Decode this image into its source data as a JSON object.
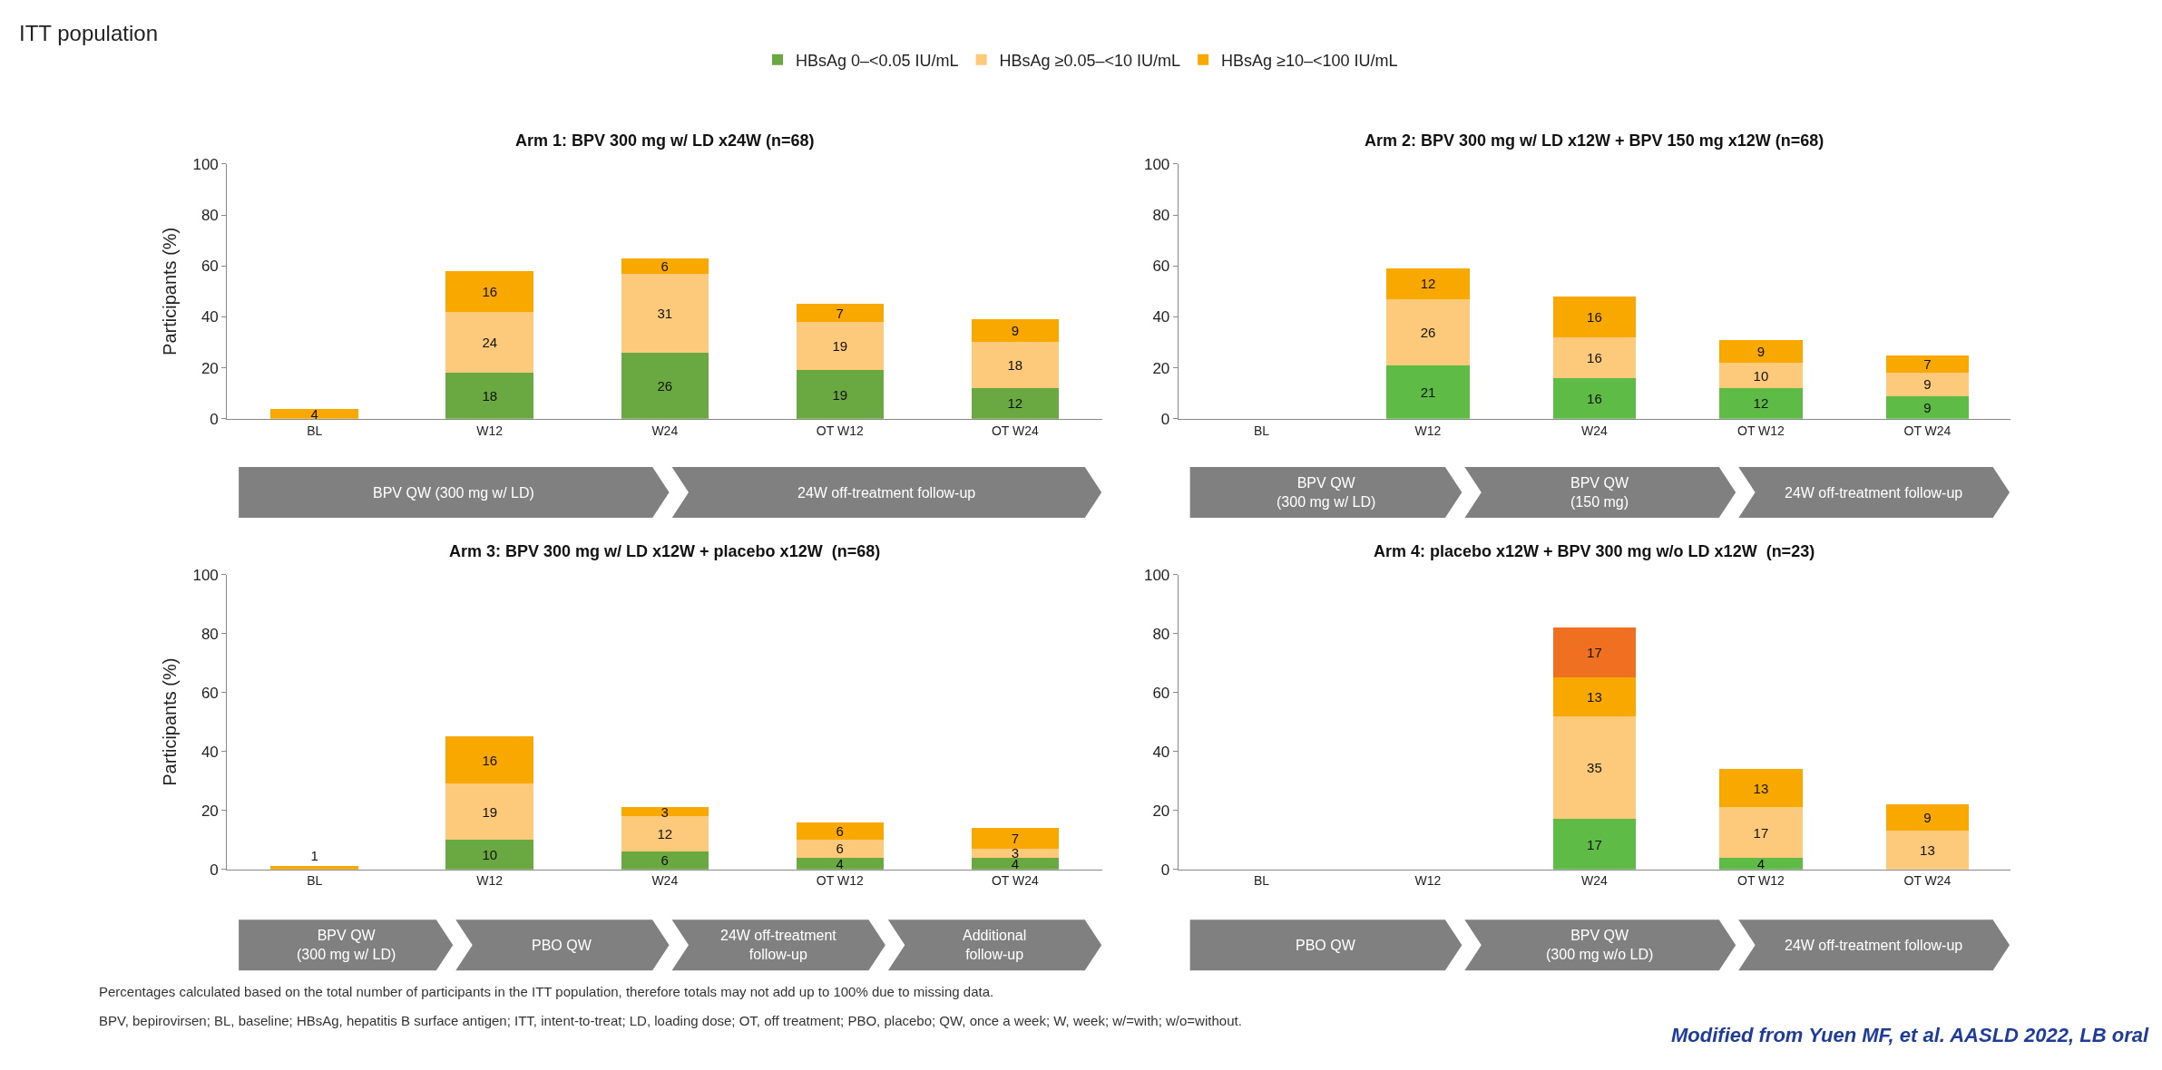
{
  "chart_data": [
    {
      "type": "other",
      "title": "ITT population",
      "annotations": [
        "Percentages calculated based on the total number of participants in the ITT population, therefore totals may not add up to 100% due to missing data.",
        "BPV, bepirovirsen; BL, baseline; HBsAg, hepatitis B surface antigen; ITT, intent-to-treat; LD, loading dose; OT, off treatment; PBO, placebo; QW, once a week; W, week; w/=with; w/o=without.",
        "Modified from Yuen MF, et al. AASLD 2022, LB oral"
      ]
    },
    {
      "type": "bar",
      "stacked": true,
      "data_labels": true,
      "legend": "top",
      "title": "Arm 1: BPV 300 mg w/ LD x24W (n=68)",
      "ylabel": "Participants (%)",
      "categories": [
        "BL",
        "W12",
        "W24",
        "OT W12",
        "OT W24"
      ],
      "ylim": [
        0,
        100
      ],
      "yticks": [
        0,
        20,
        40,
        60,
        80,
        100
      ],
      "series": [
        {
          "name": "HBsAg 0–<0.05 IU/mL",
          "color": "#6aa842",
          "values": [
            null,
            18,
            26,
            19,
            12
          ]
        },
        {
          "name": "HBsAg ≥0.05–<10 IU/mL",
          "color": "#fdc97a",
          "values": [
            null,
            24,
            31,
            19,
            18
          ]
        },
        {
          "name": "HBsAg ≥10–<100 IU/mL",
          "color": "#f9a800",
          "values": [
            4,
            16,
            6,
            7,
            9
          ]
        }
      ],
      "annotations": [
        "BPV QW (300 mg w/ LD)",
        "24W off-treatment follow-up"
      ]
    },
    {
      "type": "bar",
      "stacked": true,
      "data_labels": true,
      "title": "Arm 2: BPV 300 mg w/ LD x12W + BPV 150 mg x12W (n=68)",
      "categories": [
        "BL",
        "W12",
        "W24",
        "OT W12",
        "OT W24"
      ],
      "ylim": [
        0,
        100
      ],
      "yticks": [
        0,
        20,
        40,
        60,
        80,
        100
      ],
      "series": [
        {
          "color": "#5dbb46",
          "values": [
            null,
            21,
            16,
            12,
            9
          ]
        },
        {
          "color": "#fdc97a",
          "values": [
            null,
            26,
            16,
            10,
            9
          ]
        },
        {
          "color": "#f9a800",
          "values": [
            null,
            12,
            16,
            9,
            7
          ]
        }
      ],
      "annotations": [
        "BPV QW\n(300 mg w/ LD)",
        "BPV QW\n(150 mg)",
        "24W off-treatment follow-up"
      ]
    },
    {
      "type": "bar",
      "stacked": true,
      "data_labels": true,
      "title": "Arm 3: BPV 300 mg w/ LD x12W + placebo x12W  (n=68)",
      "ylabel": "Participants (%)",
      "categories": [
        "BL",
        "W12",
        "W24",
        "OT W12",
        "OT W24"
      ],
      "ylim": [
        0,
        100
      ],
      "yticks": [
        0,
        20,
        40,
        60,
        80,
        100
      ],
      "series": [
        {
          "color": "#6aa842",
          "values": [
            null,
            10,
            6,
            4,
            4
          ]
        },
        {
          "color": "#fdc97a",
          "values": [
            null,
            19,
            12,
            6,
            3
          ]
        },
        {
          "color": "#f9a800",
          "values": [
            1,
            16,
            3,
            6,
            7
          ]
        }
      ],
      "annotations": [
        "BPV QW\n(300 mg w/ LD)",
        "PBO QW",
        "24W off-treatment\nfollow-up",
        "Additional\nfollow-up"
      ]
    },
    {
      "type": "bar",
      "stacked": true,
      "data_labels": true,
      "title": "Arm 4: placebo x12W + BPV 300 mg w/o LD x12W  (n=23)",
      "categories": [
        "BL",
        "W12",
        "W24",
        "OT W12",
        "OT W24"
      ],
      "ylim": [
        0,
        100
      ],
      "yticks": [
        0,
        20,
        40,
        60,
        80,
        100
      ],
      "series": [
        {
          "color": "#5dbb46",
          "values": [
            null,
            null,
            17,
            4,
            null
          ]
        },
        {
          "color": "#fdc97a",
          "values": [
            null,
            null,
            35,
            17,
            13
          ]
        },
        {
          "color": "#f9a800",
          "values": [
            null,
            null,
            13,
            13,
            9
          ]
        },
        {
          "color": "#f07021",
          "values": [
            null,
            null,
            17,
            null,
            null
          ]
        }
      ],
      "annotations": [
        "PBO QW",
        "BPV QW\n(300 mg w/o LD)",
        "24W off-treatment follow-up"
      ]
    }
  ]
}
